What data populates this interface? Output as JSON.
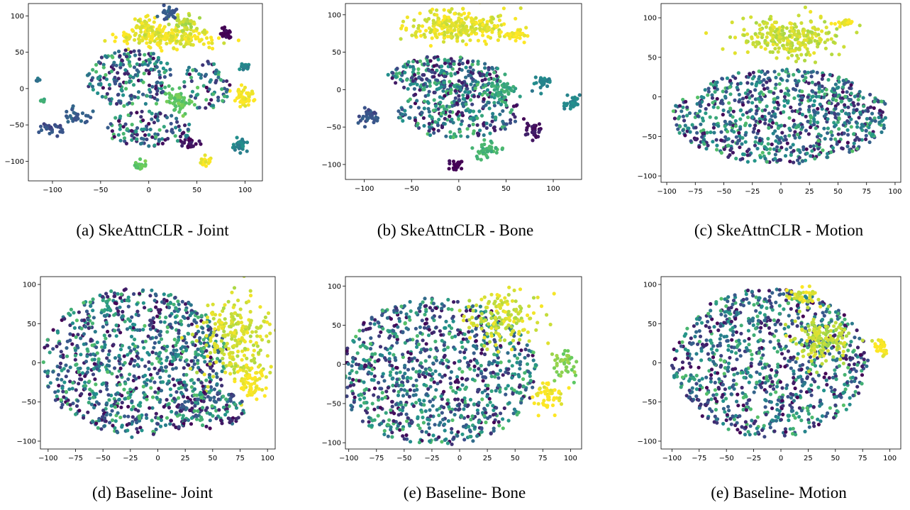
{
  "chart_data": [
    {
      "type": "scatter",
      "caption": "(a) SkeAttnCLR - Joint",
      "xlim": [
        -125,
        118
      ],
      "ylim": [
        -127,
        117
      ],
      "xticks": [
        -100,
        -50,
        0,
        50,
        100
      ],
      "yticks": [
        -100,
        -50,
        0,
        50,
        100
      ],
      "tick_labels_x": [
        "−100",
        "−50",
        "0",
        "50",
        "100"
      ],
      "tick_labels_y": [
        "−100",
        "−50",
        "0",
        "50",
        "100"
      ],
      "clusters": [
        {
          "cx": 20,
          "cy": 72,
          "rx": 48,
          "ry": 14,
          "n": 200,
          "c": 0.97
        },
        {
          "cx": -3,
          "cy": 86,
          "rx": 10,
          "ry": 10,
          "n": 40,
          "c": 0.95
        },
        {
          "cx": 40,
          "cy": 92,
          "rx": 12,
          "ry": 10,
          "n": 40,
          "c": 0.9
        },
        {
          "cx": 100,
          "cy": -12,
          "rx": 10,
          "ry": 11,
          "n": 55,
          "c": 1.0
        },
        {
          "cx": 20,
          "cy": 103,
          "rx": 8,
          "ry": 6,
          "n": 25,
          "c": 0.3
        },
        {
          "cx": 80,
          "cy": 75,
          "rx": 6,
          "ry": 8,
          "n": 25,
          "c": 0.0
        },
        {
          "cx": 100,
          "cy": 30,
          "rx": 6,
          "ry": 5,
          "n": 18,
          "c": 0.45
        },
        {
          "cx": 95,
          "cy": -78,
          "rx": 8,
          "ry": 7,
          "n": 25,
          "c": 0.45
        },
        {
          "cx": 60,
          "cy": -100,
          "rx": 7,
          "ry": 5,
          "n": 18,
          "c": 1.0
        },
        {
          "cx": 40,
          "cy": -75,
          "rx": 8,
          "ry": 7,
          "n": 22,
          "c": 0.05
        },
        {
          "cx": -10,
          "cy": -105,
          "rx": 8,
          "ry": 7,
          "n": 20,
          "c": 0.75
        },
        {
          "cx": -100,
          "cy": -55,
          "rx": 10,
          "ry": 8,
          "n": 28,
          "c": 0.25
        },
        {
          "cx": -75,
          "cy": -40,
          "rx": 10,
          "ry": 10,
          "n": 28,
          "c": 0.3
        },
        {
          "cx": 30,
          "cy": -15,
          "rx": 15,
          "ry": 15,
          "n": 60,
          "c": 0.75
        },
        {
          "cx": -20,
          "cy": 15,
          "rx": 45,
          "ry": 40,
          "n": 200,
          "c": -1
        },
        {
          "cx": 0,
          "cy": -55,
          "rx": 45,
          "ry": 25,
          "n": 120,
          "c": -1
        },
        {
          "cx": 60,
          "cy": 5,
          "rx": 25,
          "ry": 35,
          "n": 70,
          "c": -1
        },
        {
          "cx": -115,
          "cy": 12,
          "rx": 3,
          "ry": 3,
          "n": 6,
          "c": 0.4
        },
        {
          "cx": -110,
          "cy": -16,
          "rx": 3,
          "ry": 3,
          "n": 6,
          "c": 0.6
        }
      ]
    },
    {
      "type": "scatter",
      "caption": "(b) SkeAttnCLR - Bone",
      "xlim": [
        -120,
        130
      ],
      "ylim": [
        -120,
        115
      ],
      "xticks": [
        -100,
        -50,
        0,
        50,
        100
      ],
      "yticks": [
        -100,
        -50,
        0,
        50,
        100
      ],
      "tick_labels_x": [
        "−100",
        "−50",
        "0",
        "50",
        "100"
      ],
      "tick_labels_y": [
        "−100",
        "−50",
        "0",
        "50",
        "100"
      ],
      "clusters": [
        {
          "cx": 0,
          "cy": 85,
          "rx": 48,
          "ry": 18,
          "n": 260,
          "c": 0.96
        },
        {
          "cx": 60,
          "cy": 73,
          "rx": 12,
          "ry": 7,
          "n": 40,
          "c": 1.0
        },
        {
          "cx": -15,
          "cy": 20,
          "rx": 60,
          "ry": 25,
          "n": 250,
          "c": -1
        },
        {
          "cx": 0,
          "cy": -30,
          "rx": 65,
          "ry": 35,
          "n": 280,
          "c": -1
        },
        {
          "cx": 45,
          "cy": 0,
          "rx": 15,
          "ry": 15,
          "n": 50,
          "c": 0.6
        },
        {
          "cx": 120,
          "cy": -18,
          "rx": 8,
          "ry": 7,
          "n": 28,
          "c": 0.45
        },
        {
          "cx": 80,
          "cy": -55,
          "rx": 10,
          "ry": 10,
          "n": 30,
          "c": 0.05
        },
        {
          "cx": 30,
          "cy": -80,
          "rx": 15,
          "ry": 10,
          "n": 40,
          "c": 0.65
        },
        {
          "cx": -5,
          "cy": -100,
          "rx": 8,
          "ry": 6,
          "n": 20,
          "c": 0.0
        },
        {
          "cx": -95,
          "cy": -35,
          "rx": 12,
          "ry": 10,
          "n": 35,
          "c": 0.25
        },
        {
          "cx": 90,
          "cy": 10,
          "rx": 10,
          "ry": 12,
          "n": 30,
          "c": 0.45
        }
      ]
    },
    {
      "type": "scatter",
      "caption": "(c) SkeAttnCLR - Motion",
      "xlim": [
        -105,
        105
      ],
      "ylim": [
        -108,
        118
      ],
      "xticks": [
        -100,
        -75,
        -50,
        -25,
        0,
        25,
        50,
        75,
        100
      ],
      "yticks": [
        -100,
        -50,
        0,
        50,
        100
      ],
      "tick_labels_x": [
        "−100",
        "−75",
        "−50",
        "−25",
        "0",
        "25",
        "50",
        "75",
        "100"
      ],
      "tick_labels_y": [
        "−100",
        "−50",
        "0",
        "50",
        "100"
      ],
      "clusters": [
        {
          "cx": 5,
          "cy": 75,
          "rx": 40,
          "ry": 22,
          "n": 260,
          "c": 0.92
        },
        {
          "cx": 55,
          "cy": 92,
          "rx": 8,
          "ry": 4,
          "n": 18,
          "c": 1.0
        },
        {
          "cx": 0,
          "cy": -25,
          "rx": 95,
          "ry": 60,
          "n": 850,
          "c": -1
        }
      ]
    },
    {
      "type": "scatter",
      "caption": "(d) Baseline- Joint",
      "xlim": [
        -107,
        107
      ],
      "ylim": [
        -110,
        110
      ],
      "xticks": [
        -100,
        -75,
        -50,
        -25,
        0,
        25,
        50,
        75,
        100
      ],
      "yticks": [
        -100,
        -50,
        0,
        50,
        100
      ],
      "tick_labels_x": [
        "−100",
        "−75",
        "−50",
        "−25",
        "0",
        "25",
        "50",
        "75",
        "100"
      ],
      "tick_labels_y": [
        "−100",
        "−50",
        "0",
        "50",
        "100"
      ],
      "clusters": [
        {
          "cx": -20,
          "cy": 0,
          "rx": 85,
          "ry": 95,
          "n": 950,
          "c": -1
        },
        {
          "cx": 70,
          "cy": 30,
          "rx": 28,
          "ry": 45,
          "n": 240,
          "c": 0.93
        },
        {
          "cx": 85,
          "cy": -25,
          "rx": 12,
          "ry": 20,
          "n": 60,
          "c": 1.0
        },
        {
          "cx": 50,
          "cy": -60,
          "rx": 30,
          "ry": 25,
          "n": 120,
          "c": -1
        }
      ]
    },
    {
      "type": "scatter",
      "caption": "(e) Baseline- Bone",
      "xlim": [
        -103,
        110
      ],
      "ylim": [
        -108,
        112
      ],
      "xticks": [
        -100,
        -75,
        -50,
        -25,
        0,
        25,
        50,
        75,
        100
      ],
      "yticks": [
        -100,
        -50,
        0,
        50,
        100
      ],
      "tick_labels_x": [
        "−100",
        "−75",
        "−50",
        "−25",
        "0",
        "25",
        "50",
        "75",
        "100"
      ],
      "tick_labels_y": [
        "−100",
        "−50",
        "0",
        "50",
        "100"
      ],
      "clusters": [
        {
          "cx": -20,
          "cy": -10,
          "rx": 90,
          "ry": 95,
          "n": 950,
          "c": -1
        },
        {
          "cx": 40,
          "cy": 60,
          "rx": 30,
          "ry": 30,
          "n": 150,
          "c": 0.93
        },
        {
          "cx": 80,
          "cy": -40,
          "rx": 12,
          "ry": 15,
          "n": 55,
          "c": 1.0
        },
        {
          "cx": 95,
          "cy": 0,
          "rx": 10,
          "ry": 20,
          "n": 40,
          "c": 0.8
        }
      ]
    },
    {
      "type": "scatter",
      "caption": "(e) Baseline- Motion",
      "xlim": [
        -110,
        110
      ],
      "ylim": [
        -110,
        110
      ],
      "xticks": [
        -100,
        -75,
        -50,
        -25,
        0,
        25,
        50,
        75,
        100
      ],
      "yticks": [
        -100,
        -50,
        0,
        50,
        100
      ],
      "tick_labels_x": [
        "−100",
        "−75",
        "−50",
        "−25",
        "0",
        "25",
        "50",
        "75",
        "100"
      ],
      "tick_labels_y": [
        "−100",
        "−50",
        "0",
        "50",
        "100"
      ],
      "clusters": [
        {
          "cx": -10,
          "cy": 0,
          "rx": 90,
          "ry": 95,
          "n": 950,
          "c": -1
        },
        {
          "cx": 40,
          "cy": 30,
          "rx": 25,
          "ry": 25,
          "n": 150,
          "c": 0.9
        },
        {
          "cx": 20,
          "cy": 85,
          "rx": 15,
          "ry": 10,
          "n": 40,
          "c": 0.95
        },
        {
          "cx": 92,
          "cy": 20,
          "rx": 6,
          "ry": 10,
          "n": 25,
          "c": 1.0
        }
      ]
    }
  ],
  "colormap": [
    "#440154",
    "#3b528b",
    "#21918c",
    "#5ec962",
    "#fde725"
  ]
}
